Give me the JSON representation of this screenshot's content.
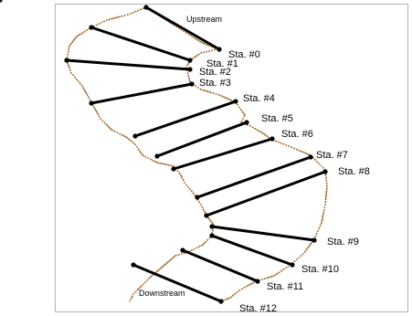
{
  "diagram": {
    "upstream_label": "Upstream",
    "downstream_label": "Downstream",
    "stations": [
      {
        "label": "Sta. #0"
      },
      {
        "label": "Sta. #1"
      },
      {
        "label": "Sta. #2"
      },
      {
        "label": "Sta. #3"
      },
      {
        "label": "Sta. #4"
      },
      {
        "label": "Sta. #5"
      },
      {
        "label": "Sta. #6"
      },
      {
        "label": "Sta. #7"
      },
      {
        "label": "Sta. #8"
      },
      {
        "label": "Sta. #9"
      },
      {
        "label": "Sta. #10"
      },
      {
        "label": "Sta. #11"
      },
      {
        "label": "Sta. #12"
      }
    ]
  },
  "colors": {
    "section_line": "#000000",
    "bank_line": "#8b5a2b",
    "bank_dots": "#b07a3c",
    "frame_border": "#b5b5b5"
  }
}
